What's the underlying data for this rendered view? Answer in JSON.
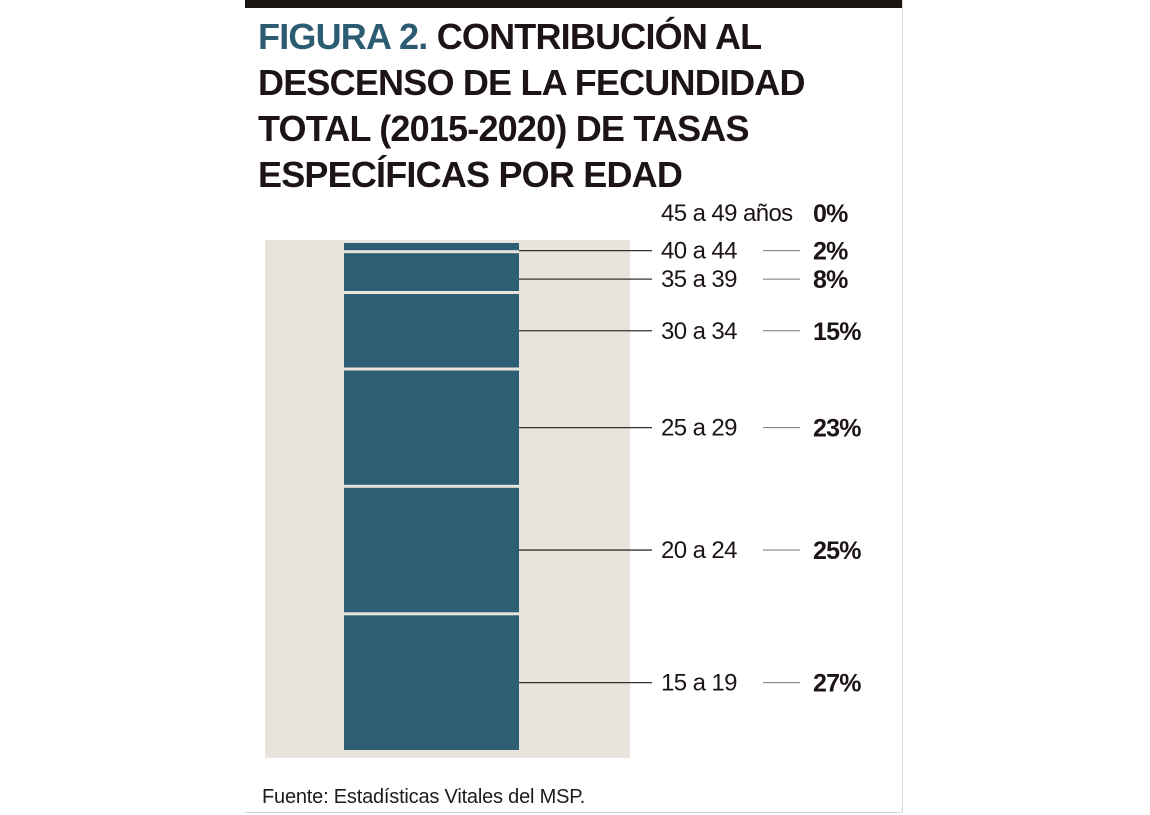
{
  "header": {
    "figure_label": "FIGURA 2.",
    "title": "CONTRIBUCIÓN AL DESCENSO DE LA FECUNDIDAD TOTAL (2015-2020) DE TASAS ESPECÍFICAS POR EDAD"
  },
  "footer": {
    "source": "Fuente: Estadísticas Vitales del MSP."
  },
  "colors": {
    "bar": "#2d5e74",
    "background_band": "#e8e4dc",
    "figure_label": "#2c5c72",
    "text": "#1d1515",
    "leader_line": "#333333",
    "rule": "#1a1614"
  },
  "chart_data": {
    "type": "bar",
    "stacked": true,
    "title": "CONTRIBUCIÓN AL DESCENSO DE LA FECUNDIDAD TOTAL (2015-2020) DE TASAS ESPECÍFICAS POR EDAD",
    "unit": "%",
    "categories": [
      "15 a 19",
      "20 a 24",
      "25 a 29",
      "30 a 34",
      "35 a 39",
      "40  a 44",
      "45 a 49 años"
    ],
    "values": [
      27,
      25,
      23,
      15,
      8,
      2,
      0
    ],
    "value_labels": [
      "27%",
      "25%",
      "23%",
      "15%",
      "8%",
      "2%",
      "0%"
    ]
  }
}
